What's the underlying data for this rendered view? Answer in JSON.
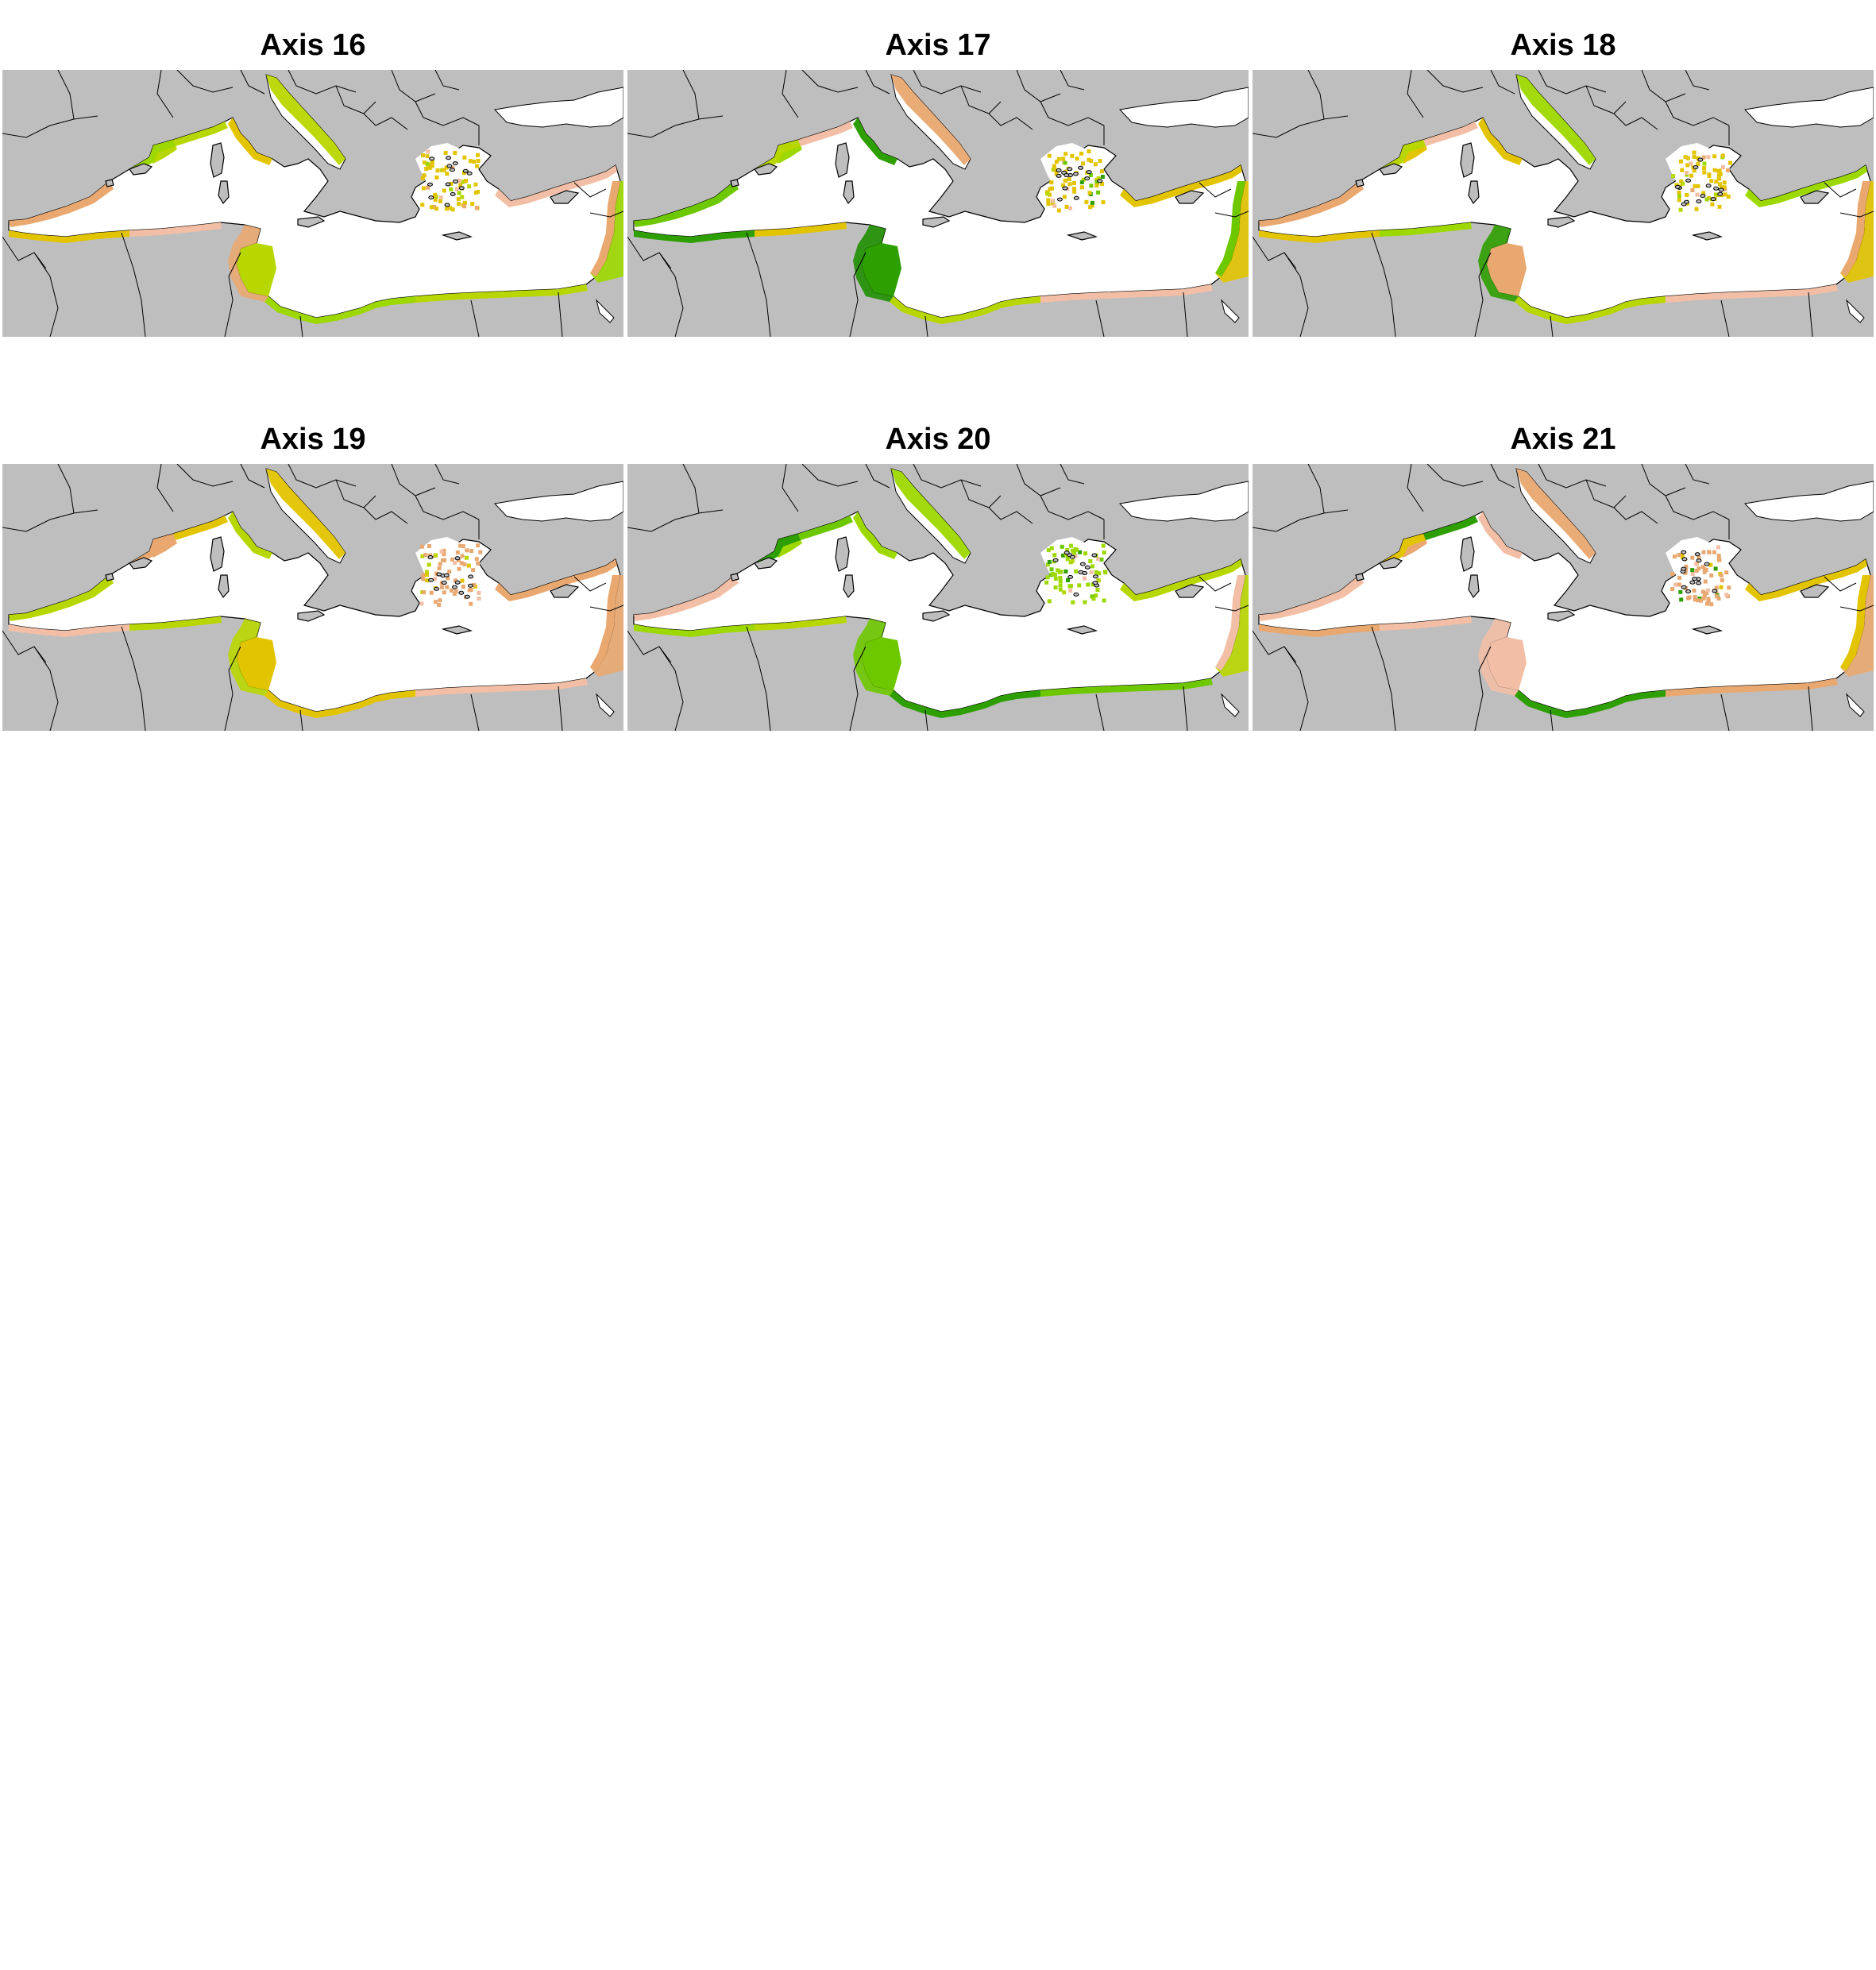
{
  "figure": {
    "panels": [
      {
        "title": "Axis 16",
        "coast": [
          [
            "#e9a870",
            "#9dd800",
            "#b8d700",
            "#e3c400",
            "#f2bfa6"
          ]
        ],
        "south": "#b8d700",
        "tunisia": "#e9a870",
        "levant": "#9dd800",
        "adriatic": "#b8d700",
        "aegean": "#e3c400",
        "lion": "#b8d700"
      },
      {
        "title": "Axis 17",
        "coast": [
          [
            "#e3c400",
            "#6ec800",
            "#b8d700",
            "#f2bfa6",
            "#2e9f00"
          ]
        ],
        "south": "#2e9f00",
        "tunisia": "#1f8f00",
        "levant": "#e3c400",
        "adriatic": "#e9a870",
        "aegean": "#e3c400",
        "lion": "#9dd800"
      },
      {
        "title": "Axis 18",
        "coast": [
          [
            "#e3c400",
            "#9dd800",
            "#e9a870",
            "#b8d700",
            "#f2bfa6"
          ]
        ],
        "south": "#e9a870",
        "tunisia": "#2e9f00",
        "levant": "#e3c400",
        "adriatic": "#9dd800",
        "aegean": "#e3c400",
        "lion": "#e3c400"
      },
      {
        "title": "Axis 19",
        "coast": [
          [
            "#e9a870",
            "#e3c400",
            "#f2bfa6",
            "#b8d700"
          ]
        ],
        "south": "#e3c400",
        "tunisia": "#b8d700",
        "levant": "#e9a870",
        "adriatic": "#e3c400",
        "aegean": "#e9a870",
        "lion": "#e9a870"
      },
      {
        "title": "Axis 20",
        "coast": [
          [
            "#2e9f00",
            "#6ec800",
            "#9dd800",
            "#b8d700",
            "#f2bfa6"
          ]
        ],
        "south": "#6ec800",
        "tunisia": "#6ec800",
        "levant": "#b8d700",
        "adriatic": "#9dd800",
        "aegean": "#9dd800",
        "lion": "#9dd800"
      },
      {
        "title": "Axis 21",
        "coast": [
          [
            "#e9a870",
            "#f2bfa6",
            "#e3c400",
            "#2e9f00"
          ]
        ],
        "south": "#f2bfa6",
        "tunisia": "#f2bfa6",
        "levant": "#e9a870",
        "adriatic": "#e9a870",
        "aegean": "#e9a870",
        "lion": "#e9a870"
      }
    ],
    "colors": {
      "land": "#bebebe",
      "sea": "#ffffff",
      "border": "#000000"
    }
  }
}
